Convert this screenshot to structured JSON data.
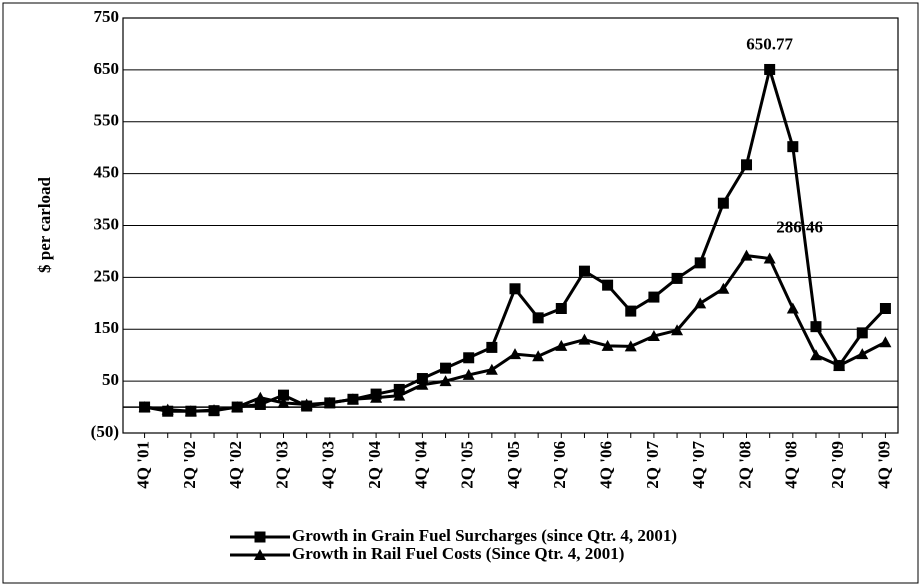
{
  "chart_data": {
    "type": "line",
    "y_label": "$ per carload",
    "categories": [
      "4Q '01",
      null,
      "2Q '02",
      null,
      "4Q '02",
      null,
      "2Q '03",
      null,
      "4Q '03",
      null,
      "2Q '04",
      null,
      "4Q '04",
      null,
      "2Q '05",
      null,
      "4Q '05",
      null,
      "2Q '06",
      null,
      "4Q '06",
      null,
      "2Q '07",
      null,
      "4Q '07",
      null,
      "2Q '08",
      null,
      "4Q '08",
      null,
      "2Q '09",
      null,
      "4Q '09"
    ],
    "series": [
      {
        "name": "Growth in Grain Fuel Surcharges (since Qtr. 4, 2001)",
        "color": "#000000",
        "marker": "square",
        "values": [
          0,
          -8,
          -8,
          -7,
          0,
          5,
          23,
          2,
          8,
          15,
          25,
          34,
          55,
          75,
          95,
          115,
          228,
          172,
          190,
          262,
          235,
          185,
          212,
          248,
          278,
          393,
          467,
          650.77,
          502,
          155,
          80,
          143,
          190
        ],
        "value_labels": [
          null,
          null,
          null,
          null,
          null,
          null,
          null,
          null,
          null,
          null,
          null,
          null,
          null,
          null,
          null,
          null,
          null,
          null,
          null,
          null,
          null,
          null,
          null,
          null,
          null,
          null,
          null,
          "650.77",
          null,
          null,
          null,
          null,
          null
        ]
      },
      {
        "name": "Growth in Rail Fuel Costs (Since Qtr. 4, 2001)",
        "color": "#000000",
        "marker": "triangle",
        "values": [
          0,
          -5,
          -8,
          -6,
          0,
          18,
          8,
          5,
          8,
          15,
          18,
          22,
          43,
          50,
          62,
          72,
          102,
          98,
          118,
          130,
          118,
          117,
          137,
          148,
          200,
          228,
          292,
          286.46,
          190,
          100,
          80,
          102,
          125
        ],
        "value_labels": [
          null,
          null,
          null,
          null,
          null,
          null,
          null,
          null,
          null,
          null,
          null,
          null,
          null,
          null,
          null,
          null,
          null,
          null,
          null,
          null,
          null,
          null,
          null,
          null,
          null,
          null,
          null,
          "286.46",
          null,
          null,
          null,
          null,
          null
        ]
      }
    ],
    "ylim": [
      -50,
      750
    ],
    "yticks": [
      {
        "value": -50,
        "label": "(50)"
      },
      50,
      150,
      250,
      350,
      450,
      550,
      650,
      750
    ],
    "grid": true,
    "legend": "bottom"
  }
}
